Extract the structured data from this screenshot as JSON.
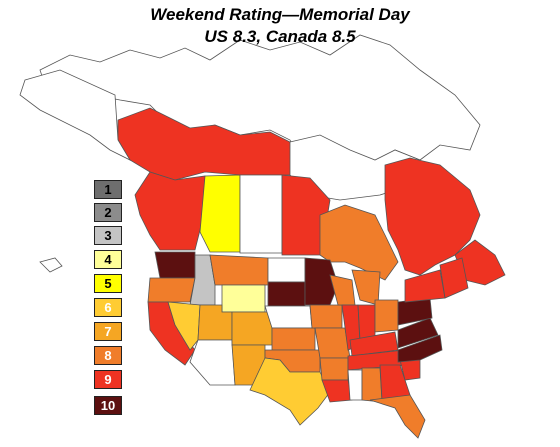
{
  "title": "Weekend Rating—Memorial Day",
  "subtitle": "US 8.3, Canada 8.5",
  "legend": [
    {
      "label": "1",
      "color": "#6e6e6e",
      "text_color": "#000000"
    },
    {
      "label": "2",
      "color": "#8c8c8c",
      "text_color": "#000000"
    },
    {
      "label": "3",
      "color": "#c4c4c4",
      "text_color": "#000000"
    },
    {
      "label": "4",
      "color": "#ffff99",
      "text_color": "#000000"
    },
    {
      "label": "5",
      "color": "#ffff00",
      "text_color": "#000000"
    },
    {
      "label": "6",
      "color": "#ffcc33",
      "text_color": "#ffffff"
    },
    {
      "label": "7",
      "color": "#f5a623",
      "text_color": "#ffffff"
    },
    {
      "label": "8",
      "color": "#f07d2a",
      "text_color": "#ffffff"
    },
    {
      "label": "9",
      "color": "#ee3322",
      "text_color": "#ffffff"
    },
    {
      "label": "10",
      "color": "#5c1010",
      "text_color": "#ffffff"
    }
  ],
  "colors": {
    "unrated": "#ffffff",
    "outline": "#555555",
    "water": "#ffffff"
  }
}
